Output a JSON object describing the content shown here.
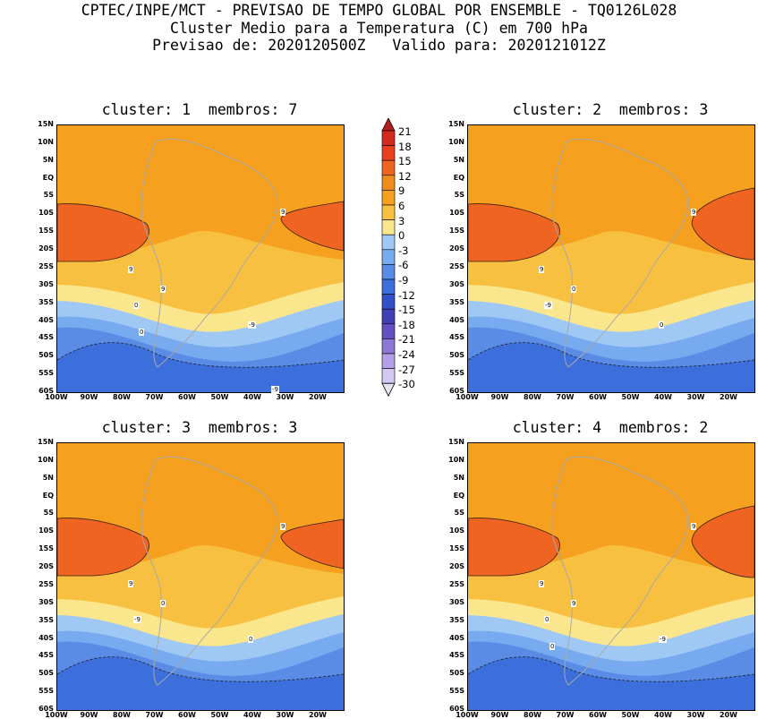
{
  "header": {
    "line1": "CPTEC/INPE/MCT - PREVISAO DE TEMPO GLOBAL POR ENSEMBLE - TQ0126L028",
    "line2": "Cluster Medio para a Temperatura (C) em 700 hPa",
    "line3": "Previsao de: 2020120500Z   Valido para: 2020121012Z"
  },
  "panels": [
    {
      "title": "cluster: 1  membros: 7"
    },
    {
      "title": "cluster: 2  membros: 3"
    },
    {
      "title": "cluster: 3  membros: 3"
    },
    {
      "title": "cluster: 4  membros: 2"
    }
  ],
  "lat_labels": [
    "15N",
    "10N",
    "5N",
    "EQ",
    "5S",
    "10S",
    "15S",
    "20S",
    "25S",
    "30S",
    "35S",
    "40S",
    "45S",
    "50S",
    "55S",
    "60S"
  ],
  "lon_labels": [
    "100W",
    "90W",
    "80W",
    "70W",
    "60W",
    "50W",
    "40W",
    "30W",
    "20W"
  ],
  "colorbar": {
    "labels": [
      "21",
      "18",
      "15",
      "12",
      "9",
      "6",
      "3",
      "0",
      "-3",
      "-6",
      "-9",
      "-12",
      "-15",
      "-18",
      "-21",
      "-24",
      "-27",
      "-30"
    ],
    "colors": [
      "#b41e1e",
      "#d22a1e",
      "#e8401e",
      "#ee6420",
      "#f08c1e",
      "#f5a01e",
      "#f8c040",
      "#fae68c",
      "#a0c8f5",
      "#78aaf0",
      "#5a8ce6",
      "#3c6edc",
      "#3250c8",
      "#4040b4",
      "#6450c0",
      "#8c78d2",
      "#b4a0e6",
      "#d2c8f0"
    ]
  },
  "contour_labels": {
    "p1": [
      "9",
      "9",
      "9",
      "0",
      "-9",
      "0",
      "-9"
    ],
    "p2": [
      "9",
      "9",
      "0",
      "-9",
      "0"
    ],
    "p3": [
      "9",
      "9",
      "0",
      "-9",
      "0"
    ],
    "p4": [
      "9",
      "9",
      "9",
      "0",
      "-9",
      "0"
    ]
  }
}
